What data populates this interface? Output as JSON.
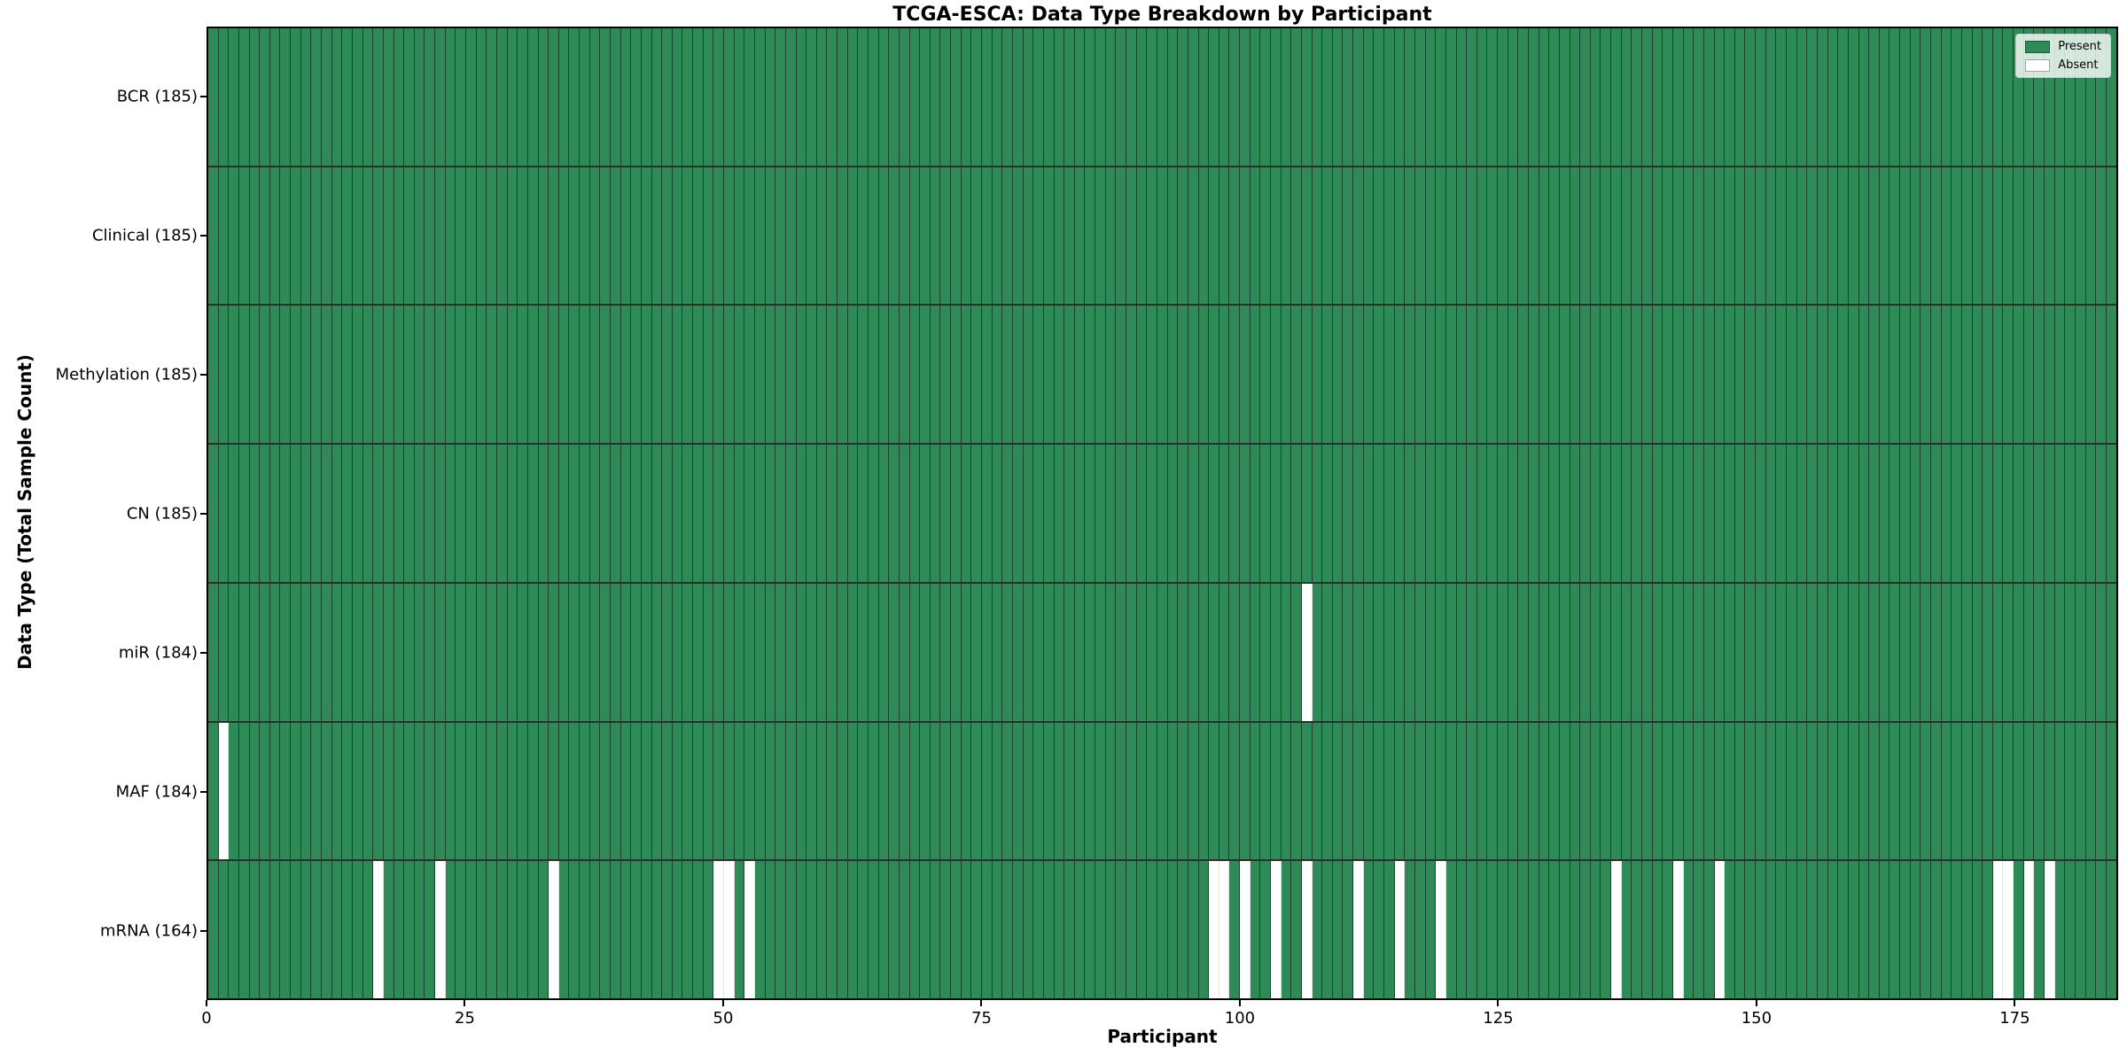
{
  "title": "TCGA-ESCA: Data Type Breakdown by Participant",
  "x_axis": {
    "label": "Participant",
    "ticks": [
      0,
      25,
      50,
      75,
      100,
      125,
      150,
      175
    ],
    "max": 185
  },
  "y_axis": {
    "label": "Data Type (Total Sample Count)"
  },
  "legend": {
    "items": [
      {
        "label": "Present",
        "color": "#2e8b57"
      },
      {
        "label": "Absent",
        "color": "#ffffff"
      }
    ]
  },
  "colors": {
    "present": "#2e8b57",
    "absent": "#ffffff",
    "bar_edge": "rgba(0,0,0,0.5)"
  },
  "chart_data": {
    "type": "heatmap",
    "title": "TCGA-ESCA: Data Type Breakdown by Participant",
    "xlabel": "Participant",
    "ylabel": "Data Type (Total Sample Count)",
    "xlim": [
      0,
      185
    ],
    "x_ticks": [
      0,
      25,
      50,
      75,
      100,
      125,
      150,
      175
    ],
    "n_participants": 185,
    "legend_position": "upper right",
    "grid": false,
    "value_encoding": {
      "present": "#2e8b57",
      "absent": "#ffffff"
    },
    "rows": [
      {
        "label": "BCR (185)",
        "name": "BCR",
        "present_count": 185,
        "absent_participants": []
      },
      {
        "label": "Clinical (185)",
        "name": "Clinical",
        "present_count": 185,
        "absent_participants": []
      },
      {
        "label": "Methylation (185)",
        "name": "Methylation",
        "present_count": 185,
        "absent_participants": []
      },
      {
        "label": "CN (185)",
        "name": "CN",
        "present_count": 185,
        "absent_participants": []
      },
      {
        "label": "miR (184)",
        "name": "miR",
        "present_count": 184,
        "absent_participants": [
          106
        ]
      },
      {
        "label": "MAF (184)",
        "name": "MAF",
        "present_count": 184,
        "absent_participants": [
          1
        ]
      },
      {
        "label": "mRNA (164)",
        "name": "mRNA",
        "present_count": 164,
        "absent_participants": [
          16,
          22,
          33,
          49,
          50,
          52,
          97,
          98,
          100,
          103,
          106,
          111,
          115,
          119,
          136,
          142,
          146,
          173,
          174,
          176,
          178
        ]
      }
    ]
  }
}
